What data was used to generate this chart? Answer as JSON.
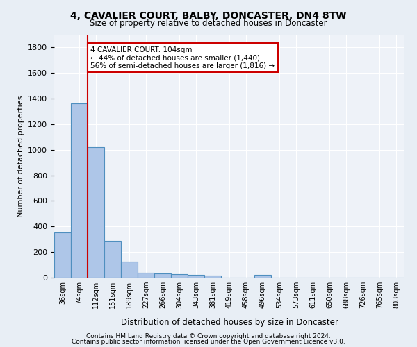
{
  "title": "4, CAVALIER COURT, BALBY, DONCASTER, DN4 8TW",
  "subtitle": "Size of property relative to detached houses in Doncaster",
  "xlabel": "Distribution of detached houses by size in Doncaster",
  "ylabel": "Number of detached properties",
  "bins": [
    "36sqm",
    "74sqm",
    "112sqm",
    "151sqm",
    "189sqm",
    "227sqm",
    "266sqm",
    "304sqm",
    "343sqm",
    "381sqm",
    "419sqm",
    "458sqm",
    "496sqm",
    "534sqm",
    "573sqm",
    "611sqm",
    "650sqm",
    "688sqm",
    "726sqm",
    "765sqm",
    "803sqm"
  ],
  "bar_values": [
    355,
    1360,
    1020,
    290,
    125,
    40,
    30,
    25,
    20,
    15,
    0,
    0,
    20,
    0,
    0,
    0,
    0,
    0,
    0,
    0,
    0
  ],
  "bar_color": "#aec6e8",
  "bar_edge_color": "#4f8fbf",
  "property_line_color": "#cc0000",
  "annotation_line1": "4 CAVALIER COURT: 104sqm",
  "annotation_line2": "← 44% of detached houses are smaller (1,440)",
  "annotation_line3": "56% of semi-detached houses are larger (1,816) →",
  "annotation_box_color": "#cc0000",
  "ylim": [
    0,
    1900
  ],
  "yticks": [
    0,
    200,
    400,
    600,
    800,
    1000,
    1200,
    1400,
    1600,
    1800
  ],
  "footer_line1": "Contains HM Land Registry data © Crown copyright and database right 2024.",
  "footer_line2": "Contains public sector information licensed under the Open Government Licence v3.0.",
  "bg_color": "#e8eef5",
  "plot_bg_color": "#eef2f8"
}
